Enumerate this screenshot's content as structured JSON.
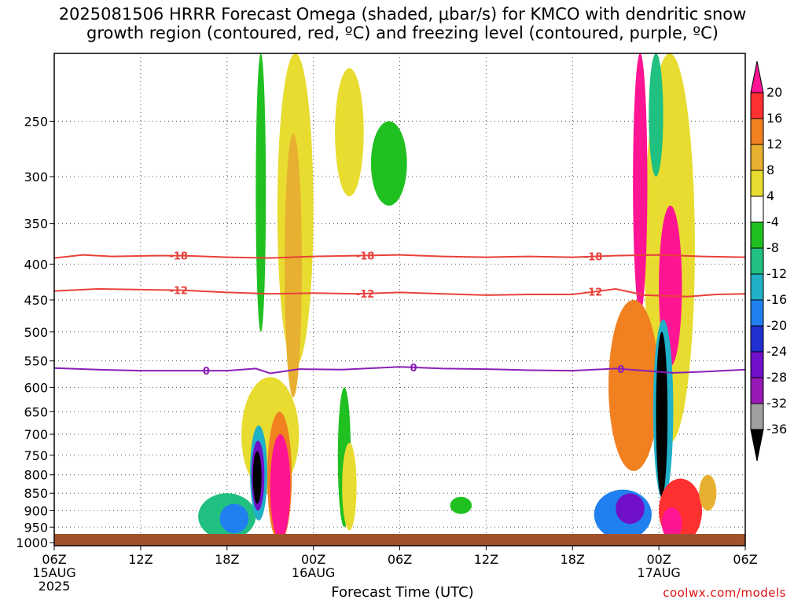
{
  "title_line1": "2025081506 HRRR Forecast Omega (shaded, μbar/s) for KMCO with dendritic snow",
  "title_line2": "growth region (contoured, red, ºC) and freezing level (contoured, purple, ºC)",
  "credit": "coolwx.com/models",
  "colors": {
    "dgz": "#e8413a",
    "freezing": "#8a1fb8",
    "ground": "#a0522d"
  },
  "chart_data": {
    "type": "heatmap",
    "xlabel": "Forecast Time (UTC)",
    "ylabel": "",
    "x_range_hours": [
      0,
      48
    ],
    "y_range_hPa": [
      1010,
      200
    ],
    "y_ticks": [
      250,
      300,
      350,
      400,
      450,
      500,
      550,
      600,
      650,
      700,
      750,
      800,
      850,
      900,
      950,
      1000
    ],
    "x_ticks": [
      {
        "hour": 0,
        "label": "06Z",
        "sub1": "15AUG",
        "sub2": "2025"
      },
      {
        "hour": 6,
        "label": "12Z",
        "sub1": "",
        "sub2": ""
      },
      {
        "hour": 12,
        "label": "18Z",
        "sub1": "",
        "sub2": ""
      },
      {
        "hour": 18,
        "label": "00Z",
        "sub1": "16AUG",
        "sub2": ""
      },
      {
        "hour": 24,
        "label": "06Z",
        "sub1": "",
        "sub2": ""
      },
      {
        "hour": 30,
        "label": "12Z",
        "sub1": "",
        "sub2": ""
      },
      {
        "hour": 36,
        "label": "18Z",
        "sub1": "",
        "sub2": ""
      },
      {
        "hour": 42,
        "label": "00Z",
        "sub1": "17AUG",
        "sub2": ""
      },
      {
        "hour": 48,
        "label": "06Z",
        "sub1": "",
        "sub2": ""
      }
    ],
    "colorbar": {
      "labels": [
        "20",
        "16",
        "12",
        "8",
        "4",
        "-4",
        "-8",
        "-12",
        "-16",
        "-20",
        "-24",
        "-28",
        "-32",
        "-36"
      ],
      "colors": [
        "#ff1493",
        "#ff3030",
        "#f08020",
        "#e8b030",
        "#e8dc30",
        "#ffffff",
        "#20c020",
        "#20c080",
        "#20b0c8",
        "#2080f0",
        "#2030d0",
        "#7010c8",
        "#9818b8",
        "#a0a0a0",
        "#000000"
      ]
    },
    "contours": [
      {
        "label": "-18",
        "color": "#e8413a",
        "points": [
          [
            0,
            392
          ],
          [
            2,
            388
          ],
          [
            4,
            390
          ],
          [
            7,
            389
          ],
          [
            9,
            389
          ],
          [
            12,
            391
          ],
          [
            15,
            392
          ],
          [
            18,
            390
          ],
          [
            21,
            389
          ],
          [
            24,
            388
          ],
          [
            27,
            390
          ],
          [
            30,
            391
          ],
          [
            33,
            390
          ],
          [
            36,
            391
          ],
          [
            39,
            389
          ],
          [
            42,
            388
          ],
          [
            45,
            390
          ],
          [
            48,
            391
          ]
        ]
      },
      {
        "label": "-12",
        "color": "#e8413a",
        "points": [
          [
            0,
            437
          ],
          [
            3,
            434
          ],
          [
            6,
            435
          ],
          [
            9,
            436
          ],
          [
            12,
            439
          ],
          [
            15,
            441
          ],
          [
            18,
            440
          ],
          [
            21,
            441
          ],
          [
            24,
            439
          ],
          [
            27,
            441
          ],
          [
            30,
            443
          ],
          [
            33,
            442
          ],
          [
            36,
            442
          ],
          [
            39,
            434
          ],
          [
            41,
            443
          ],
          [
            44,
            445
          ],
          [
            46,
            442
          ],
          [
            48,
            441
          ]
        ]
      },
      {
        "label": "0",
        "color": "#8a1fb8",
        "points": [
          [
            0,
            563
          ],
          [
            3,
            566
          ],
          [
            6,
            568
          ],
          [
            9,
            568
          ],
          [
            12,
            568
          ],
          [
            14,
            564
          ],
          [
            15,
            573
          ],
          [
            17,
            565
          ],
          [
            20,
            566
          ],
          [
            24,
            561
          ],
          [
            27,
            564
          ],
          [
            30,
            565
          ],
          [
            33,
            567
          ],
          [
            36,
            568
          ],
          [
            39,
            564
          ],
          [
            41,
            568
          ],
          [
            43,
            572
          ],
          [
            45,
            570
          ],
          [
            48,
            566
          ]
        ]
      }
    ],
    "omega_regions": [
      {
        "omega": 4,
        "x": [
          15.5,
          18.0
        ],
        "p": [
          200,
          560
        ]
      },
      {
        "omega": 8,
        "x": [
          16.0,
          17.2
        ],
        "p": [
          260,
          620
        ]
      },
      {
        "omega": -8,
        "x": [
          14.0,
          14.7
        ],
        "p": [
          200,
          500
        ]
      },
      {
        "omega": 4,
        "x": [
          19.5,
          21.5
        ],
        "p": [
          210,
          320
        ]
      },
      {
        "omega": -8,
        "x": [
          22.0,
          24.5
        ],
        "p": [
          250,
          330
        ]
      },
      {
        "omega": 4,
        "x": [
          13.0,
          17.0
        ],
        "p": [
          580,
          850
        ]
      },
      {
        "omega": -12,
        "x": [
          10.0,
          14.0
        ],
        "p": [
          850,
          990
        ]
      },
      {
        "omega": -20,
        "x": [
          11.5,
          13.5
        ],
        "p": [
          880,
          970
        ]
      },
      {
        "omega": -16,
        "x": [
          13.6,
          14.8
        ],
        "p": [
          680,
          930
        ]
      },
      {
        "omega": -28,
        "x": [
          13.7,
          14.6
        ],
        "p": [
          715,
          900
        ]
      },
      {
        "omega": -36,
        "x": [
          13.8,
          14.4
        ],
        "p": [
          740,
          880
        ]
      },
      {
        "omega": 12,
        "x": [
          14.8,
          16.5
        ],
        "p": [
          650,
          1000
        ]
      },
      {
        "omega": 20,
        "x": [
          15.0,
          16.4
        ],
        "p": [
          700,
          990
        ]
      },
      {
        "omega": -8,
        "x": [
          19.7,
          20.6
        ],
        "p": [
          600,
          950
        ]
      },
      {
        "omega": 4,
        "x": [
          20.0,
          21.0
        ],
        "p": [
          720,
          960
        ]
      },
      {
        "omega": 4,
        "x": [
          41.0,
          44.5
        ],
        "p": [
          200,
          720
        ]
      },
      {
        "omega": 20,
        "x": [
          40.2,
          41.2
        ],
        "p": [
          200,
          470
        ]
      },
      {
        "omega": -12,
        "x": [
          41.3,
          42.3
        ],
        "p": [
          200,
          300
        ]
      },
      {
        "omega": 12,
        "x": [
          38.5,
          42.0
        ],
        "p": [
          450,
          790
        ]
      },
      {
        "omega": 20,
        "x": [
          42.0,
          43.6
        ],
        "p": [
          330,
          560
        ]
      },
      {
        "omega": -16,
        "x": [
          41.6,
          43.0
        ],
        "p": [
          480,
          870
        ]
      },
      {
        "omega": -36,
        "x": [
          41.8,
          42.6
        ],
        "p": [
          500,
          860
        ]
      },
      {
        "omega": -20,
        "x": [
          37.5,
          41.5
        ],
        "p": [
          840,
          990
        ]
      },
      {
        "omega": -28,
        "x": [
          39.0,
          41.0
        ],
        "p": [
          850,
          940
        ]
      },
      {
        "omega": 16,
        "x": [
          42.0,
          45.0
        ],
        "p": [
          810,
          1000
        ]
      },
      {
        "omega": 20,
        "x": [
          42.2,
          43.6
        ],
        "p": [
          890,
          990
        ]
      },
      {
        "omega": 8,
        "x": [
          44.8,
          46.0
        ],
        "p": [
          800,
          900
        ]
      },
      {
        "omega": -8,
        "x": [
          27.5,
          29.0
        ],
        "p": [
          860,
          910
        ]
      }
    ]
  }
}
